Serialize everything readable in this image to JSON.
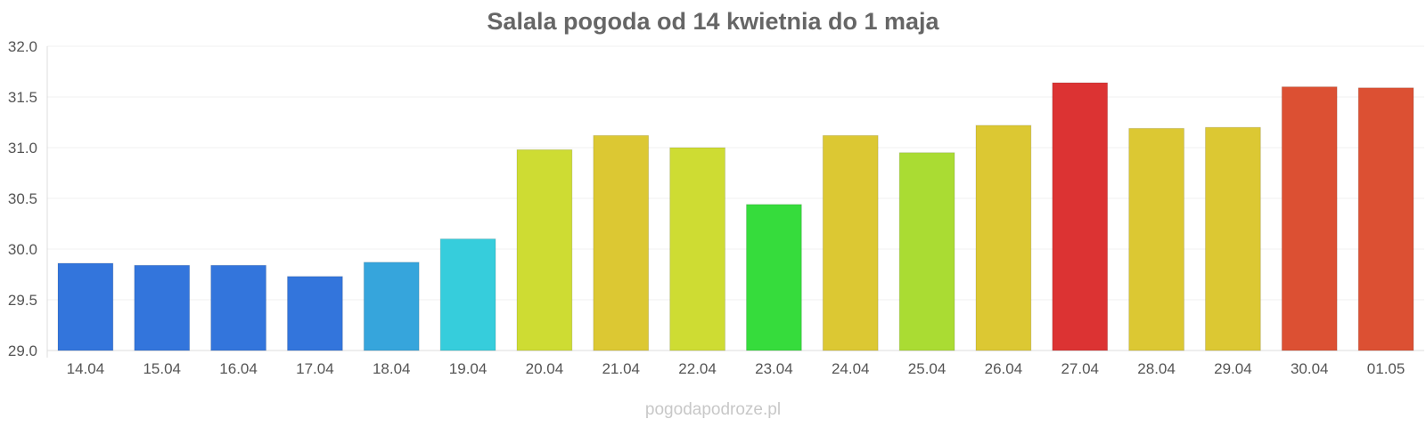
{
  "chart_data": {
    "type": "bar",
    "title": "Salala pogoda od 14 kwietnia do 1 maja",
    "xlabel": "",
    "ylabel": "",
    "categories": [
      "14.04",
      "15.04",
      "16.04",
      "17.04",
      "18.04",
      "19.04",
      "20.04",
      "21.04",
      "22.04",
      "23.04",
      "24.04",
      "25.04",
      "26.04",
      "27.04",
      "28.04",
      "29.04",
      "30.04",
      "01.05"
    ],
    "values": [
      29.86,
      29.84,
      29.84,
      29.73,
      29.87,
      30.1,
      30.98,
      31.12,
      31.0,
      30.44,
      31.12,
      30.95,
      31.22,
      31.64,
      31.19,
      31.2,
      31.6,
      31.59
    ],
    "colors": [
      "#3375dc",
      "#3375dc",
      "#3375dc",
      "#3375dc",
      "#36a5dc",
      "#36cddc",
      "#cedc33",
      "#dcc833",
      "#cedc33",
      "#36dc3c",
      "#dcc833",
      "#aadc33",
      "#dcc833",
      "#dc3333",
      "#dcc833",
      "#dcc833",
      "#dc5033",
      "#dc5033"
    ],
    "ylim": [
      29.0,
      32.0
    ],
    "yticks": [
      "29.0",
      "29.5",
      "30.0",
      "30.5",
      "31.0",
      "31.5",
      "32.0"
    ],
    "grid": true,
    "legend": "none"
  },
  "watermark": "pogodapodroze.pl"
}
